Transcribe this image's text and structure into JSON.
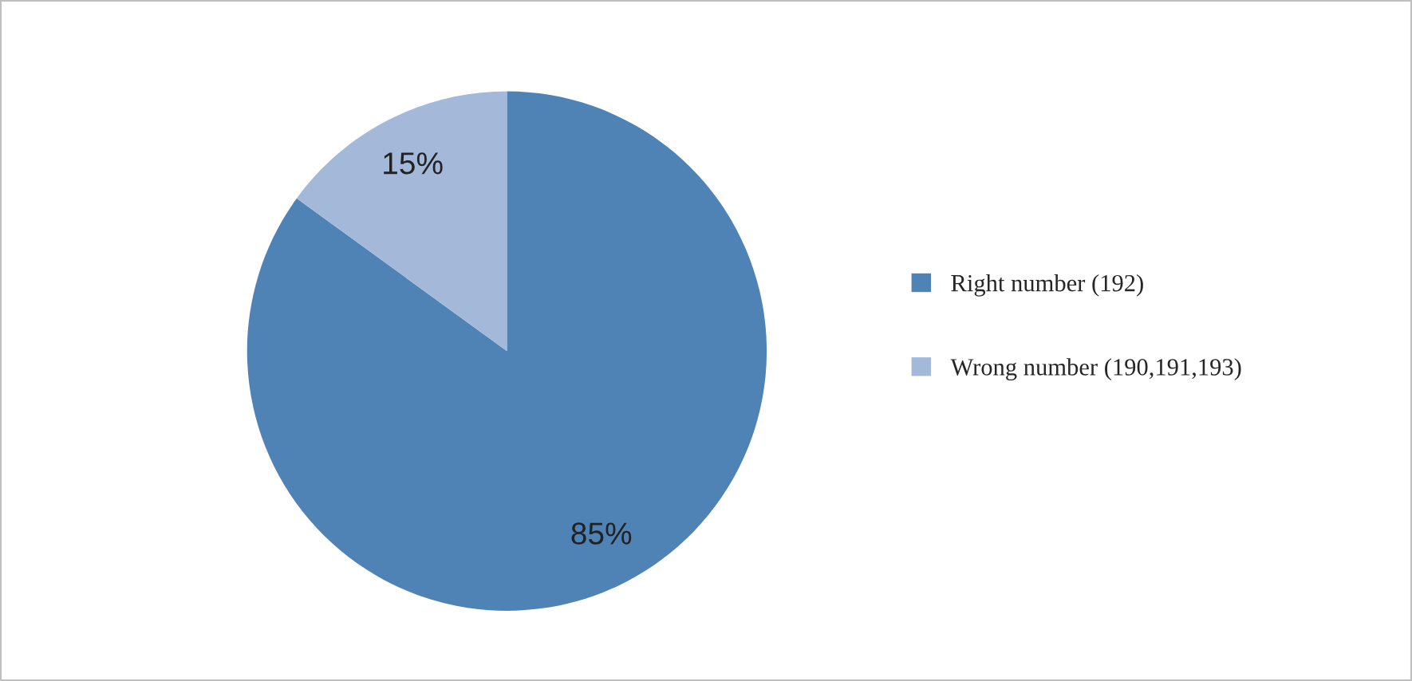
{
  "chart_data": {
    "type": "pie",
    "categories": [
      "Right number (192)",
      "Wrong number (190,191,193)"
    ],
    "values": [
      85,
      15
    ],
    "colors": [
      "#4f83b6",
      "#a4b9da"
    ],
    "value_labels": [
      "85%",
      "15%"
    ],
    "legend": "right"
  }
}
